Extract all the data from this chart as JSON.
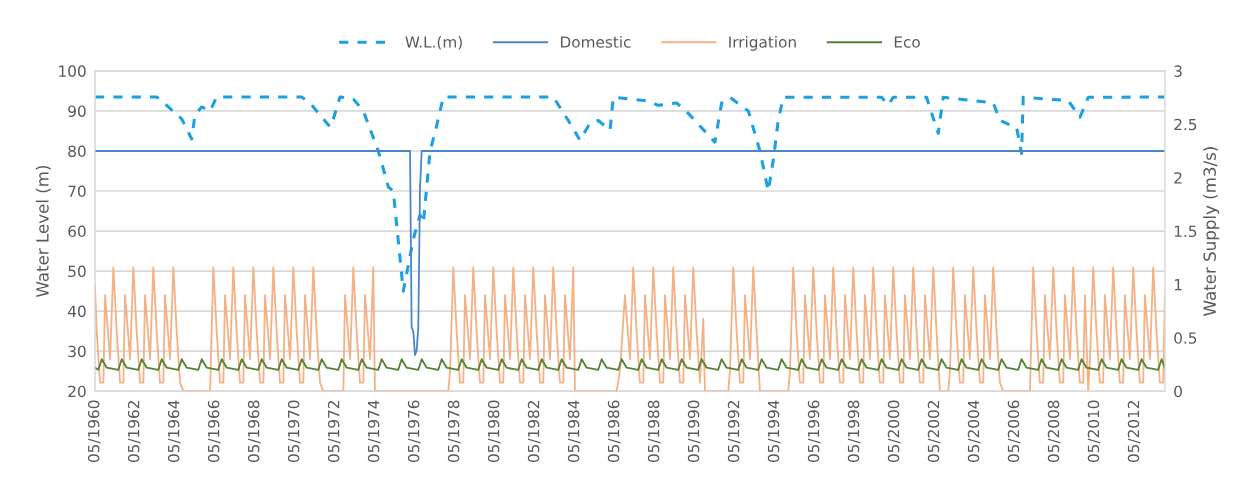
{
  "chart_data": {
    "type": "line",
    "ylabel": "Water Level (m)",
    "y2label": "Water Supply (m3/s)",
    "xlim": [
      "1960-05",
      "2013-11"
    ],
    "xticks": [
      {
        "value": "1960-05",
        "label": "05/1960"
      },
      {
        "value": "1962-05",
        "label": "05/1962"
      },
      {
        "value": "1964-05",
        "label": "05/1964"
      },
      {
        "value": "1966-05",
        "label": "05/1966"
      },
      {
        "value": "1968-05",
        "label": "05/1968"
      },
      {
        "value": "1970-05",
        "label": "05/1970"
      },
      {
        "value": "1972-05",
        "label": "05/1972"
      },
      {
        "value": "1974-05",
        "label": "05/1974"
      },
      {
        "value": "1976-05",
        "label": "05/1976"
      },
      {
        "value": "1978-05",
        "label": "05/1978"
      },
      {
        "value": "1980-05",
        "label": "05/1980"
      },
      {
        "value": "1982-05",
        "label": "05/1982"
      },
      {
        "value": "1984-05",
        "label": "05/1984"
      },
      {
        "value": "1986-05",
        "label": "05/1986"
      },
      {
        "value": "1988-05",
        "label": "05/1988"
      },
      {
        "value": "1990-05",
        "label": "05/1990"
      },
      {
        "value": "1992-05",
        "label": "05/1992"
      },
      {
        "value": "1994-05",
        "label": "05/1994"
      },
      {
        "value": "1996-05",
        "label": "05/1996"
      },
      {
        "value": "1998-05",
        "label": "05/1998"
      },
      {
        "value": "2000-05",
        "label": "05/2000"
      },
      {
        "value": "2002-05",
        "label": "05/2002"
      },
      {
        "value": "2004-05",
        "label": "05/2004"
      },
      {
        "value": "2006-05",
        "label": "05/2006"
      },
      {
        "value": "2008-05",
        "label": "05/2008"
      },
      {
        "value": "2010-05",
        "label": "05/2010"
      },
      {
        "value": "2012-05",
        "label": "05/2012"
      }
    ],
    "ylim": [
      20,
      100
    ],
    "yticks": [
      20,
      30,
      40,
      50,
      60,
      70,
      80,
      90,
      100
    ],
    "y2lim": [
      0,
      3
    ],
    "y2ticks": [
      0,
      0.5,
      1,
      1.5,
      2,
      2.5,
      3
    ],
    "grid": "y",
    "legend": "top",
    "marker": "none",
    "series": [
      {
        "name": "W.L.(m)",
        "color": "#1ba1e2",
        "line_style": "dashed",
        "x": [
          "1960-05",
          "1963-06",
          "1964-01",
          "1964-09",
          "1965-03",
          "1965-05",
          "1965-09",
          "1966-02",
          "1966-06",
          "1970-09",
          "1971-03",
          "1972-02",
          "1972-04",
          "1972-08",
          "1973-04",
          "1973-10",
          "1974-07",
          "1975-01",
          "1975-04",
          "1975-10",
          "1976-04",
          "1976-08",
          "1976-10",
          "1977-02",
          "1977-05",
          "1977-10",
          "1983-04",
          "1984-01",
          "1984-08",
          "1985-02",
          "1985-07",
          "1986-02",
          "1986-04",
          "1988-01",
          "1988-07",
          "1989-06",
          "1990-01",
          "1991-01",
          "1991-05",
          "1991-09",
          "1992-02",
          "1993-01",
          "1993-08",
          "1994-01",
          "1994-04",
          "1994-07",
          "1994-10",
          "1999-09",
          "2000-01",
          "2000-04",
          "2001-12",
          "2002-07",
          "2002-10",
          "2005-04",
          "2005-08",
          "2006-01",
          "2006-06",
          "2006-09",
          "2006-10",
          "2009-01",
          "2009-08",
          "2010-01",
          "2013-11"
        ],
        "values": [
          93.5,
          93.5,
          91,
          88,
          83,
          89,
          91,
          90,
          93.5,
          93.5,
          91.5,
          86,
          88,
          93.5,
          93,
          90,
          80,
          71,
          70,
          45,
          58,
          64,
          62,
          80,
          84.5,
          93.5,
          93.5,
          87.6,
          82.7,
          87,
          87.6,
          85.2,
          93.4,
          92.5,
          91.4,
          92,
          89.4,
          84,
          82.2,
          92,
          93.4,
          90,
          80,
          70,
          77.6,
          87.6,
          93.4,
          93.4,
          91.5,
          93.4,
          93.4,
          84.4,
          93.4,
          92,
          87.7,
          86.7,
          86,
          79.4,
          93.4,
          92.6,
          88.4,
          93.4,
          93.5
        ]
      },
      {
        "name": "Domestic",
        "color": "#4a86c8",
        "line_style": "solid",
        "axis": "y2",
        "x": [
          "1960-05",
          "1976-02",
          "1976-03",
          "1976-04",
          "1976-05",
          "1976-06",
          "1976-07",
          "1976-08",
          "1976-09",
          "2013-11"
        ],
        "values": [
          2.25,
          2.25,
          0.6,
          0.56,
          0.34,
          0.38,
          0.6,
          1.9,
          2.25,
          2.25
        ]
      },
      {
        "name": "Irrigation",
        "color": "#f4b183",
        "line_style": "solid",
        "axis": "y2",
        "x": [
          "1960-05",
          "1960-06",
          "1960-08",
          "1960-10",
          "1960-11",
          "1961-02",
          "1961-04",
          "1961-06",
          "1961-08",
          "1961-10",
          "1961-11",
          "1962-02",
          "1962-04",
          "1962-06",
          "1962-08",
          "1962-10",
          "1962-11",
          "1963-02",
          "1963-04",
          "1963-06",
          "1963-08",
          "1963-10",
          "1963-11",
          "1964-02",
          "1964-04",
          "1964-06",
          "1964-08",
          "1964-10",
          "1966-02",
          "1966-04",
          "1966-06",
          "1966-08",
          "1966-10",
          "1966-11",
          "1967-02",
          "1967-04",
          "1967-06",
          "1967-08",
          "1967-10",
          "1967-11",
          "1968-02",
          "1968-04",
          "1968-06",
          "1968-08",
          "1968-10",
          "1968-11",
          "1969-02",
          "1969-04",
          "1969-06",
          "1969-08",
          "1969-10",
          "1969-11",
          "1970-02",
          "1970-04",
          "1970-06",
          "1970-08",
          "1970-10",
          "1970-11",
          "1971-02",
          "1971-04",
          "1971-06",
          "1971-08",
          "1971-10",
          "1972-10",
          "1972-11",
          "1973-02",
          "1973-04",
          "1973-06",
          "1973-08",
          "1973-10",
          "1973-11",
          "1974-02",
          "1974-04",
          "1974-05",
          "1978-01",
          "1978-02",
          "1978-04",
          "1978-06",
          "1978-08",
          "1978-10",
          "1978-11",
          "1979-02",
          "1979-04",
          "1979-06",
          "1979-08",
          "1979-10",
          "1979-11",
          "1980-02",
          "1980-04",
          "1980-06",
          "1980-08",
          "1980-10",
          "1980-11",
          "1981-02",
          "1981-04",
          "1981-06",
          "1981-08",
          "1981-10",
          "1981-11",
          "1982-02",
          "1982-04",
          "1982-06",
          "1982-08",
          "1982-10",
          "1982-11",
          "1983-02",
          "1983-04",
          "1983-06",
          "1983-08",
          "1983-10",
          "1983-11",
          "1984-02",
          "1984-04",
          "1984-05",
          "1986-06",
          "1986-08",
          "1986-11",
          "1987-02",
          "1987-04",
          "1987-06",
          "1987-08",
          "1987-10",
          "1987-11",
          "1988-02",
          "1988-04",
          "1988-06",
          "1988-08",
          "1988-10",
          "1988-11",
          "1989-02",
          "1989-04",
          "1989-06",
          "1989-08",
          "1989-10",
          "1989-11",
          "1990-02",
          "1990-04",
          "1990-06",
          "1990-08",
          "1990-10",
          "1990-11",
          "1992-01",
          "1992-02",
          "1992-04",
          "1992-06",
          "1992-08",
          "1992-10",
          "1992-11",
          "1993-02",
          "1993-04",
          "1993-06",
          "1993-08",
          "1995-01",
          "1995-02",
          "1995-04",
          "1995-06",
          "1995-08",
          "1995-10",
          "1995-11",
          "1996-02",
          "1996-04",
          "1996-06",
          "1996-08",
          "1996-10",
          "1996-11",
          "1997-02",
          "1997-04",
          "1997-06",
          "1997-08",
          "1997-10",
          "1997-11",
          "1998-02",
          "1998-04",
          "1998-06",
          "1998-08",
          "1998-10",
          "1998-11",
          "1999-02",
          "1999-04",
          "1999-06",
          "1999-08",
          "1999-10",
          "1999-11",
          "2000-02",
          "2000-04",
          "2000-06",
          "2000-08",
          "2000-10",
          "2000-11",
          "2001-02",
          "2001-04",
          "2001-06",
          "2001-08",
          "2001-10",
          "2001-11",
          "2002-02",
          "2002-04",
          "2002-06",
          "2002-08",
          "2003-01",
          "2003-02",
          "2003-04",
          "2003-06",
          "2003-08",
          "2003-10",
          "2003-11",
          "2004-02",
          "2004-04",
          "2004-06",
          "2004-08",
          "2004-10",
          "2004-11",
          "2005-02",
          "2005-04",
          "2005-06",
          "2005-08",
          "2005-10",
          "2007-02",
          "2007-04",
          "2007-06",
          "2007-08",
          "2007-10",
          "2007-11",
          "2008-02",
          "2008-04",
          "2008-06",
          "2008-08",
          "2008-10",
          "2008-11",
          "2009-02",
          "2009-04",
          "2009-06",
          "2009-08",
          "2009-10",
          "2009-11",
          "2010-01",
          "2010-02",
          "2010-04",
          "2010-06",
          "2010-08",
          "2010-10",
          "2010-11",
          "2011-02",
          "2011-04",
          "2011-06",
          "2011-08",
          "2011-10",
          "2011-11",
          "2012-02",
          "2012-04",
          "2012-06",
          "2012-08",
          "2012-10",
          "2012-11",
          "2013-02",
          "2013-04",
          "2013-06",
          "2013-08",
          "2013-10",
          "2013-11"
        ],
        "values": [
          0.98,
          0.56,
          0.08,
          0.08,
          0.9,
          0.3,
          1.16,
          0.56,
          0.08,
          0.08,
          0.9,
          0.3,
          1.16,
          0.56,
          0.08,
          0.08,
          0.9,
          0.3,
          1.16,
          0.56,
          0.08,
          0.08,
          0.9,
          0.3,
          1.16,
          0.56,
          0.08,
          0,
          0,
          1.16,
          0.56,
          0.08,
          0.08,
          0.9,
          0.3,
          1.16,
          0.56,
          0.08,
          0.08,
          0.9,
          0.3,
          1.16,
          0.56,
          0.08,
          0.08,
          0.9,
          0.3,
          1.16,
          0.56,
          0.08,
          0.08,
          0.9,
          0.3,
          1.16,
          0.56,
          0.08,
          0.08,
          0.9,
          0.3,
          1.16,
          0.56,
          0.08,
          0,
          0,
          0.9,
          0.3,
          1.16,
          0.56,
          0.08,
          0.08,
          0.9,
          0.3,
          1.16,
          0,
          0,
          0.19,
          1.16,
          0.56,
          0.08,
          0.08,
          0.9,
          0.3,
          1.16,
          0.56,
          0.08,
          0.08,
          0.9,
          0.3,
          1.16,
          0.56,
          0.08,
          0.08,
          0.9,
          0.3,
          1.16,
          0.56,
          0.08,
          0.08,
          0.9,
          0.3,
          1.16,
          0.56,
          0.08,
          0.08,
          0.9,
          0.3,
          1.16,
          0.56,
          0.08,
          0.08,
          0.9,
          0.3,
          1.16,
          0,
          0,
          0.19,
          0.9,
          0.3,
          1.16,
          0.56,
          0.08,
          0.08,
          0.9,
          0.3,
          1.16,
          0.56,
          0.08,
          0.08,
          0.9,
          0.3,
          1.16,
          0.56,
          0.08,
          0.08,
          0.9,
          0.3,
          1.16,
          0.56,
          0.08,
          0.68,
          0,
          0,
          0.19,
          1.16,
          0.56,
          0.08,
          0.08,
          0.9,
          0.3,
          1.16,
          0.56,
          0,
          0,
          0.19,
          1.16,
          0.56,
          0.08,
          0.08,
          0.9,
          0.3,
          1.16,
          0.56,
          0.08,
          0.08,
          0.9,
          0.3,
          1.16,
          0.56,
          0.08,
          0.08,
          0.9,
          0.3,
          1.16,
          0.56,
          0.08,
          0.08,
          0.9,
          0.3,
          1.16,
          0.56,
          0.08,
          0.08,
          0.9,
          0.3,
          1.16,
          0.56,
          0.08,
          0.08,
          0.9,
          0.3,
          1.16,
          0.56,
          0.08,
          0.08,
          0.9,
          0.3,
          1.16,
          0.56,
          0,
          0,
          0.19,
          1.16,
          0.56,
          0.08,
          0.08,
          0.9,
          0.3,
          1.16,
          0.56,
          0.08,
          0.08,
          0.9,
          0.3,
          1.16,
          0.56,
          0.08,
          0,
          0,
          1.16,
          0.56,
          0.08,
          0.08,
          0.9,
          0.3,
          1.16,
          0.56,
          0.08,
          0.08,
          0.9,
          0.3,
          1.16,
          0.56,
          0.08,
          0.08,
          0.9,
          0,
          0.3,
          1.16,
          0.56,
          0.08,
          0.08,
          0.9,
          0.3,
          1.16,
          0.56,
          0.08,
          0.08,
          0.9,
          0.3,
          1.16,
          0.56,
          0.08,
          0.08,
          0.9,
          0.3,
          1.16,
          0.56,
          0.08,
          0.08,
          0.9
        ]
      },
      {
        "name": "Eco",
        "color": "#548235",
        "line_style": "solid",
        "axis": "y2",
        "x": [
          "1960-05",
          "1960-07",
          "1960-09",
          "1960-12",
          "1961-07",
          "1961-09",
          "1961-12",
          "1962-07",
          "1962-09",
          "1962-12",
          "1963-07",
          "1963-09",
          "1963-12",
          "1964-07",
          "1964-09",
          "1964-12",
          "1965-07",
          "1965-09",
          "1965-12",
          "1966-07",
          "1966-09",
          "1966-12",
          "1967-07",
          "1967-09",
          "1967-12",
          "1968-07",
          "1968-09",
          "1968-12",
          "1969-07",
          "1969-09",
          "1969-12",
          "1970-07",
          "1970-09",
          "1970-12",
          "1971-07",
          "1971-09",
          "1971-12",
          "1972-07",
          "1972-09",
          "1972-12",
          "1973-07",
          "1973-09",
          "1973-12",
          "1974-07",
          "1974-09",
          "1974-12",
          "1975-07",
          "1975-09",
          "1975-12",
          "1976-07",
          "1976-09",
          "1976-12",
          "1977-07",
          "1977-09",
          "1977-12",
          "1978-07",
          "1978-09",
          "1978-12",
          "1979-07",
          "1979-09",
          "1979-12",
          "1980-07",
          "1980-09",
          "1980-12",
          "1981-07",
          "1981-09",
          "1981-12",
          "1982-07",
          "1982-09",
          "1982-12",
          "1983-07",
          "1983-09",
          "1983-12",
          "1984-07",
          "1984-09",
          "1984-12",
          "1985-07",
          "1985-09",
          "1985-12",
          "1986-07",
          "1986-09",
          "1986-12",
          "1987-07",
          "1987-09",
          "1987-12",
          "1988-07",
          "1988-09",
          "1988-12",
          "1989-07",
          "1989-09",
          "1989-12",
          "1990-07",
          "1990-09",
          "1990-12",
          "1991-07",
          "1991-09",
          "1991-12",
          "1992-07",
          "1992-09",
          "1992-12",
          "1993-07",
          "1993-09",
          "1993-12",
          "1994-07",
          "1994-09",
          "1994-12",
          "1995-07",
          "1995-09",
          "1995-12",
          "1996-07",
          "1996-09",
          "1996-12",
          "1997-07",
          "1997-09",
          "1997-12",
          "1998-07",
          "1998-09",
          "1998-12",
          "1999-07",
          "1999-09",
          "1999-12",
          "2000-07",
          "2000-09",
          "2000-12",
          "2001-07",
          "2001-09",
          "2001-12",
          "2002-07",
          "2002-09",
          "2002-12",
          "2003-07",
          "2003-09",
          "2003-12",
          "2004-07",
          "2004-09",
          "2004-12",
          "2005-07",
          "2005-09",
          "2005-12",
          "2006-07",
          "2006-09",
          "2006-12",
          "2007-07",
          "2007-09",
          "2007-12",
          "2008-07",
          "2008-09",
          "2008-12",
          "2009-07",
          "2009-09",
          "2009-12",
          "2010-07",
          "2010-09",
          "2010-12",
          "2011-07",
          "2011-09",
          "2011-12",
          "2012-07",
          "2012-09",
          "2012-12",
          "2013-07",
          "2013-09",
          "2013-11"
        ],
        "values": [
          0.22,
          0.2,
          0.3,
          0.22,
          0.2,
          0.3,
          0.22,
          0.2,
          0.3,
          0.22,
          0.2,
          0.3,
          0.22,
          0.2,
          0.3,
          0.22,
          0.2,
          0.3,
          0.22,
          0.2,
          0.3,
          0.22,
          0.2,
          0.3,
          0.22,
          0.2,
          0.3,
          0.22,
          0.2,
          0.3,
          0.22,
          0.2,
          0.3,
          0.22,
          0.2,
          0.3,
          0.22,
          0.2,
          0.3,
          0.22,
          0.2,
          0.3,
          0.22,
          0.2,
          0.3,
          0.22,
          0.2,
          0.3,
          0.22,
          0.2,
          0.3,
          0.22,
          0.2,
          0.3,
          0.22,
          0.2,
          0.3,
          0.22,
          0.2,
          0.3,
          0.22,
          0.2,
          0.3,
          0.22,
          0.2,
          0.3,
          0.22,
          0.2,
          0.3,
          0.22,
          0.2,
          0.3,
          0.22,
          0.2,
          0.3,
          0.22,
          0.2,
          0.3,
          0.22,
          0.2,
          0.3,
          0.22,
          0.2,
          0.3,
          0.22,
          0.2,
          0.3,
          0.22,
          0.2,
          0.3,
          0.22,
          0.2,
          0.3,
          0.22,
          0.2,
          0.3,
          0.22,
          0.2,
          0.3,
          0.22,
          0.2,
          0.3,
          0.22,
          0.2,
          0.3,
          0.22,
          0.2,
          0.3,
          0.22,
          0.2,
          0.3,
          0.22,
          0.2,
          0.3,
          0.22,
          0.2,
          0.3,
          0.22,
          0.2,
          0.3,
          0.22,
          0.2,
          0.3,
          0.22,
          0.2,
          0.3,
          0.22,
          0.2,
          0.3,
          0.22,
          0.2,
          0.3,
          0.22,
          0.2,
          0.3,
          0.22,
          0.2,
          0.3,
          0.22,
          0.2,
          0.3,
          0.22,
          0.2,
          0.3,
          0.22,
          0.2,
          0.3,
          0.22,
          0.2,
          0.3,
          0.22,
          0.2,
          0.3,
          0.22,
          0.2,
          0.3,
          0.22,
          0.2,
          0.3,
          0.22,
          0.2,
          0.3,
          0.22
        ]
      }
    ]
  }
}
